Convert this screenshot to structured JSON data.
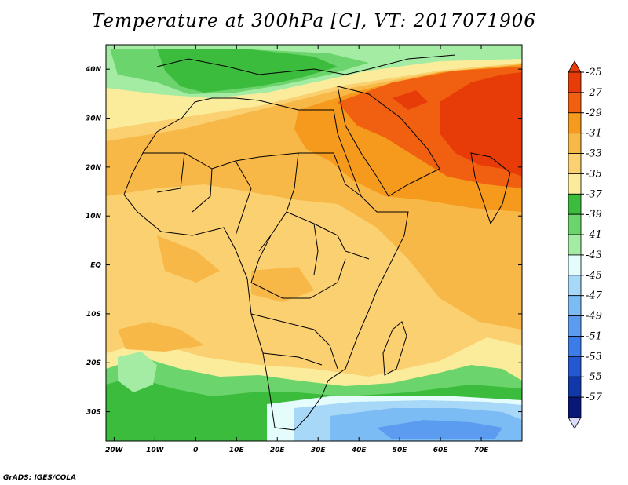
{
  "title": "Temperature at 300hPa [C], VT: 2017071906",
  "credit": "GrADS: IGES/COLA",
  "map": {
    "lon_labels": [
      "20W",
      "10W",
      "0",
      "10E",
      "20E",
      "30E",
      "40E",
      "50E",
      "60E",
      "70E"
    ],
    "lat_labels": [
      "40N",
      "30N",
      "20N",
      "10N",
      "EQ",
      "10S",
      "20S",
      "30S"
    ]
  },
  "colorbar": {
    "labels": [
      "-25",
      "-27",
      "-29",
      "-31",
      "-33",
      "-35",
      "-37",
      "-39",
      "-41",
      "-43",
      "-45",
      "-47",
      "-49",
      "-51",
      "-53",
      "-55",
      "-57"
    ],
    "colors": [
      "#e83c08",
      "#f06010",
      "#f59a1c",
      "#f7b848",
      "#fad070",
      "#fbec9c",
      "#3cbc3c",
      "#6cd46c",
      "#a4eca4",
      "#e4fcfc",
      "#a8d8f8",
      "#7cbcf4",
      "#5c9cf0",
      "#3c7ce8",
      "#2458d0",
      "#1038a8",
      "#081878"
    ],
    "over_color": "#e83c08",
    "under_color": "#dcdcf8"
  }
}
